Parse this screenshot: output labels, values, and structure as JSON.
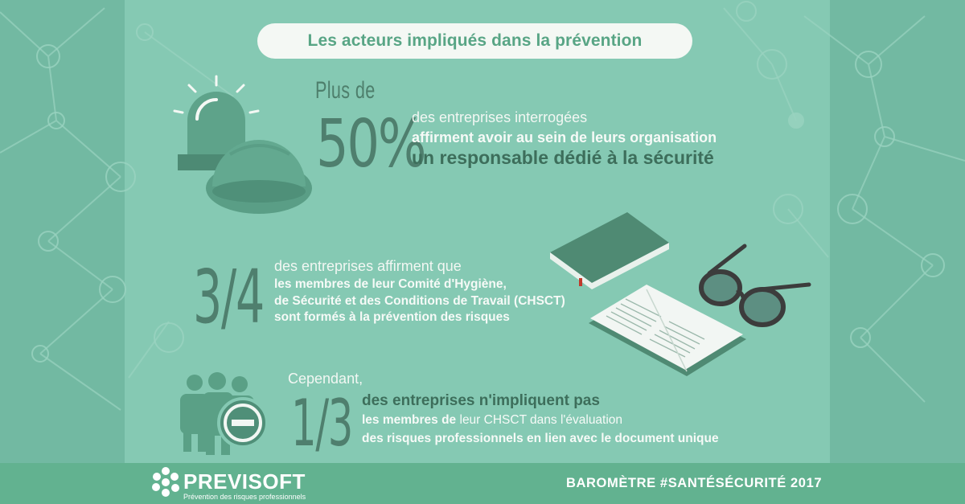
{
  "title": "Les acteurs impliqués dans la prévention",
  "stat1": {
    "prefix": "Plus de",
    "value": "50%",
    "line1": "des entreprises interrogées",
    "line2": "affirment avoir au sein de leurs organisation",
    "line3": "un responsable dédié à la sécurité"
  },
  "stat2": {
    "value": "3/4",
    "line1": "des entreprises affirment que",
    "line2": "les membres de leur Comité d'Hygiène,",
    "line3": "de Sécurité et des Conditions de Travail (CHSCT)",
    "line4": "sont formés à la prévention des risques"
  },
  "stat3": {
    "intro": "Cependant,",
    "value": "1/3",
    "line1": "des entreprises n'impliquent pas",
    "line2_bold": "les membres de",
    "line2_rest": " leur CHSCT dans l'évaluation",
    "line3": "des risques professionnels en lien avec le document unique"
  },
  "footer": {
    "brand": "PREVISOFT",
    "tagline": "Prévention des risques professionnels",
    "campaign": "BAROMÈTRE #SANTÉSÉCURITÉ 2017"
  },
  "colors": {
    "background": "#7ec3ad",
    "panel": "#85c9b3",
    "footer": "#62b290",
    "dark_text": "#4f7f6e",
    "title_text": "#58a585"
  },
  "icons": [
    "alarm-light-icon",
    "hard-hat-icon",
    "closed-book-icon",
    "open-book-icon",
    "glasses-icon",
    "people-minus-icon",
    "previsoft-logo-icon"
  ]
}
